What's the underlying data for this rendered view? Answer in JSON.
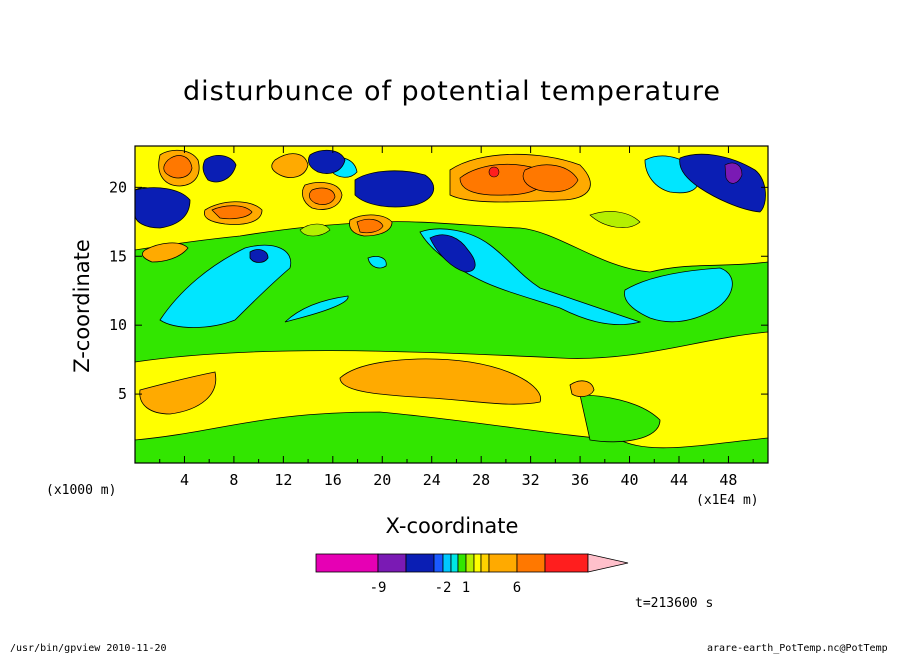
{
  "title": "disturbunce of potential temperature",
  "xlabel": "X-coordinate",
  "ylabel": "Z-coordinate",
  "x_unit": "(x1E4 m)",
  "y_unit": "(x1000 m)",
  "time_label": "t=213600 s",
  "footer_left": "/usr/bin/gpview  2010-11-20",
  "footer_right": "arare-earth_PotTemp.nc@PotTemp",
  "chart_data": {
    "type": "heatmap",
    "title": "disturbunce of potential temperature",
    "xlabel": "X-coordinate",
    "ylabel": "Z-coordinate",
    "xlim": [
      0,
      51.2
    ],
    "ylim": [
      0,
      23
    ],
    "x_ticks": [
      4,
      8,
      12,
      16,
      20,
      24,
      28,
      32,
      36,
      40,
      44,
      48
    ],
    "y_ticks": [
      5,
      10,
      15,
      20
    ],
    "colorbar": {
      "tick_labels": [
        "-9",
        "-2",
        "1",
        "6"
      ],
      "colors": [
        "#e600b4",
        "#7a1ab4",
        "#0a1eb4",
        "#1a5aff",
        "#00c8ff",
        "#00e6e6",
        "#32e600",
        "#b4f000",
        "#ffff00",
        "#ffd200",
        "#ffaa00",
        "#ff7800",
        "#ff1e1e",
        "#ff8078",
        "#ffc0cb"
      ]
    },
    "regions": [
      {
        "name": "lower-green-layer",
        "z_range": [
          0,
          2
        ]
      },
      {
        "name": "lower-yellow-layer",
        "z_range": [
          2,
          9
        ]
      },
      {
        "name": "middle-green-layer",
        "z_range": [
          9,
          16
        ]
      },
      {
        "name": "upper-yellow-layer",
        "z_range": [
          16,
          23
        ]
      }
    ]
  }
}
